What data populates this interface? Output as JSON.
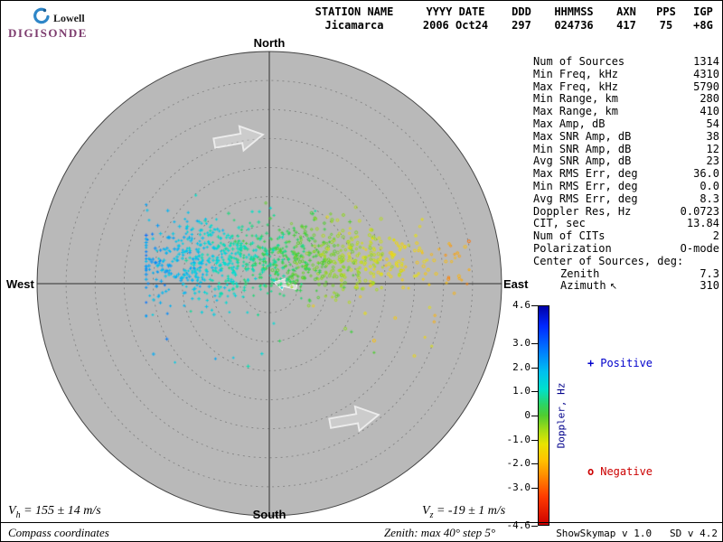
{
  "header": {
    "logo": {
      "lowell": "Lowell",
      "digisonde": "DIGISONDE"
    },
    "columns": [
      {
        "label": "STATION NAME",
        "value": "Jicamarca"
      },
      {
        "label": "YYYY DATE",
        "value": "2006 Oct24"
      },
      {
        "label": "DDD",
        "value": "297"
      },
      {
        "label": "HHMMSS",
        "value": "024736"
      },
      {
        "label": "AXN",
        "value": "417"
      },
      {
        "label": "PPS",
        "value": "75"
      },
      {
        "label": "IGP",
        "value": "+8G"
      }
    ]
  },
  "skymap": {
    "north": "North",
    "south": "South",
    "east": "East",
    "west": "West",
    "max_zenith_deg": 40,
    "ring_step_deg": 5,
    "flow_arrows": [
      {
        "u": -0.136,
        "v": -0.623,
        "angle_deg": -10,
        "scale": 1.05
      },
      {
        "u": 0.362,
        "v": 0.584,
        "angle_deg": -10,
        "scale": 1.05
      }
    ],
    "center_arrow": {
      "u": 0.07,
      "v": 0.005,
      "angle_deg": 193,
      "scale": 0.5
    }
  },
  "stats": {
    "azimuth_arrow": "↖",
    "rows": [
      {
        "label": "Num of Sources",
        "value": "1314"
      },
      {
        "label": "Min Freq, kHz",
        "value": "4310"
      },
      {
        "label": "Max Freq, kHz",
        "value": "5790"
      },
      {
        "label": "Min Range, km",
        "value": "280"
      },
      {
        "label": "Max Range, km",
        "value": "410"
      },
      {
        "label": "Max Amp, dB",
        "value": "54"
      },
      {
        "label": "Max SNR Amp, dB",
        "value": "38"
      },
      {
        "label": "Min SNR Amp, dB",
        "value": "12"
      },
      {
        "label": "Avg SNR Amp, dB",
        "value": "23"
      },
      {
        "label": "Max RMS Err, deg",
        "value": "36.0"
      },
      {
        "label": "Min RMS Err, deg",
        "value": "0.0"
      },
      {
        "label": "Avg RMS Err, deg",
        "value": "8.3"
      },
      {
        "label": "Doppler Res, Hz",
        "value": "0.0723"
      },
      {
        "label": "CIT, sec",
        "value": "13.84"
      },
      {
        "label": "Num of CITs",
        "value": "2"
      },
      {
        "label": "Polarization",
        "value": "O-mode"
      },
      {
        "label": "Center of Sources, deg:",
        "value": ""
      },
      {
        "label": "Zenith",
        "value": "7.3",
        "indent": true
      },
      {
        "label": "Azimuth",
        "value": "310",
        "indent": true,
        "icon": "azimuth-arrow"
      }
    ]
  },
  "colorbar": {
    "label": "Doppler, Hz",
    "ticks": [
      4.6,
      3.0,
      2.0,
      1.0,
      0,
      -1.0,
      -2.0,
      -3.0,
      -4.6
    ]
  },
  "legend": {
    "positive_symbol": "+",
    "positive": "Positive",
    "negative_symbol": "o",
    "negative": "Negative"
  },
  "footer": {
    "vh": {
      "var": "V",
      "sub": "h",
      "rest": " = 155 ± 14 m/s"
    },
    "vz": {
      "var": "V",
      "sub": "z",
      "rest": " = -19 ± 1 m/s"
    },
    "coords_note": "Compass coordinates",
    "zenith_note": "Zenith: max 40°  step 5°",
    "version": "ShowSkymap v 1.0   SD v 4.2"
  },
  "colors": {
    "map_fill": "#b9b9b9",
    "ring_stroke": "#8a8a8a",
    "axis_stroke": "#303030",
    "flow_arrow": "#ececec",
    "legend_positive": "#0000cc",
    "legend_negative": "#cc0000",
    "colorbar_label": "#00008b",
    "logo_digisonde": "#7d3c6e",
    "logo_swoosh": "#2e86c8",
    "colorbar_stops": [
      [
        0,
        "#0000a8"
      ],
      [
        0.09,
        "#0028ff"
      ],
      [
        0.2,
        "#0078ff"
      ],
      [
        0.3,
        "#00c0f0"
      ],
      [
        0.38,
        "#00e0cc"
      ],
      [
        0.45,
        "#2cd464"
      ],
      [
        0.5,
        "#50cc30"
      ],
      [
        0.57,
        "#a8dc14"
      ],
      [
        0.63,
        "#e8e400"
      ],
      [
        0.7,
        "#ffc400"
      ],
      [
        0.77,
        "#ff9000"
      ],
      [
        0.87,
        "#ff3c00"
      ],
      [
        1,
        "#cc0000"
      ]
    ]
  },
  "chart_data": {
    "type": "scatter",
    "title": "Digisonde skymap — Jicamarca 2006 Oct24 297 024736",
    "projection": "polar sky map, zenith 0-40 deg, 5 deg rings, compass coordinates",
    "num_sources": 1314,
    "colorbar": {
      "label": "Doppler, Hz",
      "range": [
        -4.6,
        4.6
      ],
      "ticks": [
        4.6,
        3.0,
        2.0,
        1.0,
        0,
        -1.0,
        -2.0,
        -3.0,
        -4.6
      ]
    },
    "summary": "Sources form a dense E-W band slightly north of zenith; Doppler grades from positive (blue/cyan, west side) through zero (green, center) to negative (yellow/orange, east side). Positive sources drawn as '+', negative as 'o'.",
    "center_of_sources": {
      "zenith_deg": 7.3,
      "azimuth_deg": 310
    },
    "velocities": {
      "vh_ms": "155 ± 14",
      "vz_ms": "-19 ± 1"
    },
    "generation": {
      "seed": 20061024,
      "n_band": 1060,
      "n_outliers": 48,
      "clusters": [
        {
          "weight": 0.42,
          "u_mean": -0.25,
          "u_sigma": 0.17
        },
        {
          "weight": 0.46,
          "u_mean": 0.22,
          "u_sigma": 0.2
        },
        {
          "weight": 0.12,
          "u_min": -0.52,
          "u_max": 0.88
        }
      ],
      "y_mean": -0.1,
      "y_sigma_base": 0.085,
      "y_sigma_slope": -0.025,
      "doppler_intercept": 0.55,
      "doppler_slope": -3.4,
      "doppler_noise": 0.3
    }
  }
}
